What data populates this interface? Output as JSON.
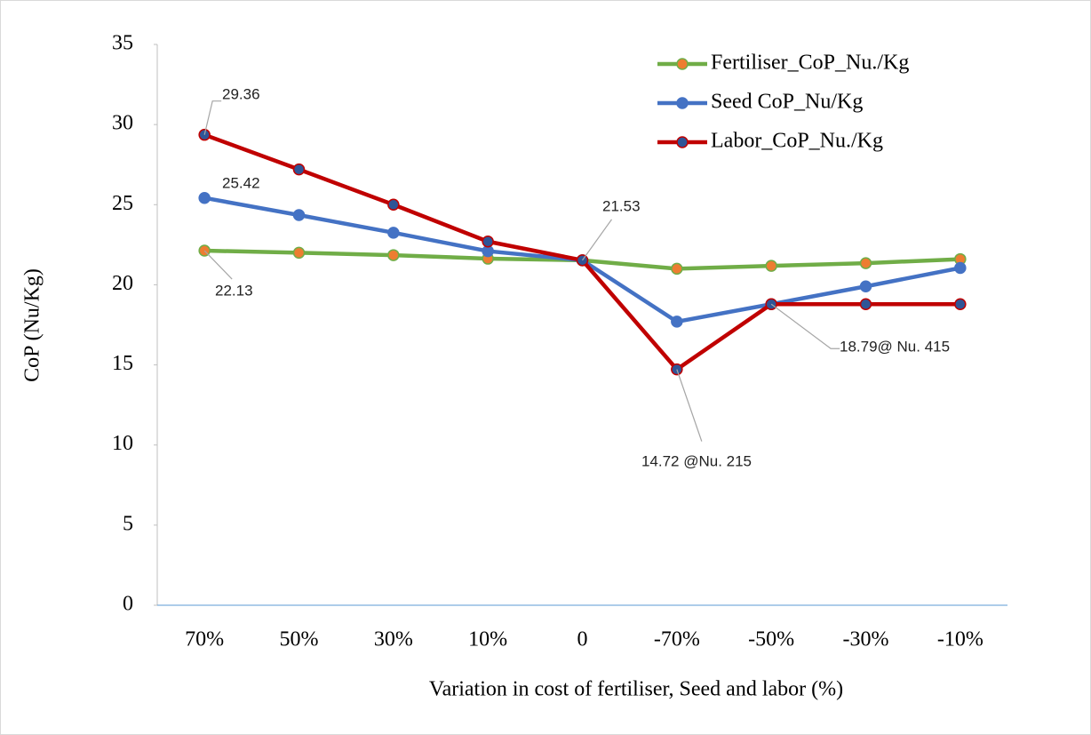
{
  "chart_data": {
    "type": "line",
    "x_label": "Variation in cost of fertiliser, Seed and labor (%)",
    "y_label": "CoP (Nu/Kg)",
    "categories": [
      "70%",
      "50%",
      "30%",
      "10%",
      "0",
      "-70%",
      "-50%",
      "-30%",
      "-10%"
    ],
    "ylim": [
      0,
      35
    ],
    "yticks": [
      0,
      5,
      10,
      15,
      20,
      25,
      30,
      35
    ],
    "grid": false,
    "legend": "upper right",
    "series": [
      {
        "name": "Fertiliser_CoP_Nu./Kg",
        "color": "#70ad47",
        "marker_color": "#ed7d31",
        "values": [
          22.13,
          22.0,
          21.85,
          21.63,
          21.53,
          21.0,
          21.18,
          21.35,
          21.6
        ],
        "value_labels": [
          "22.13",
          null,
          null,
          null,
          null,
          null,
          null,
          null,
          null
        ]
      },
      {
        "name": "Seed CoP_Nu/Kg",
        "color": "#4472c4",
        "marker_color": "#4472c4",
        "values": [
          25.42,
          24.35,
          23.25,
          22.1,
          21.53,
          17.7,
          18.79,
          19.9,
          21.05
        ],
        "value_labels": [
          "25.42",
          null,
          null,
          null,
          null,
          null,
          null,
          null,
          null
        ]
      },
      {
        "name": "Labor_CoP_Nu./Kg",
        "color": "#c00000",
        "marker_color": "#2f5597",
        "values": [
          29.36,
          27.2,
          25.0,
          22.7,
          21.53,
          14.72,
          18.79,
          18.79,
          18.79
        ],
        "value_labels": [
          "29.36",
          null,
          null,
          null,
          "21.53",
          "14.72 @Nu. 215",
          "18.79@ Nu. 415",
          null,
          null
        ]
      }
    ]
  }
}
